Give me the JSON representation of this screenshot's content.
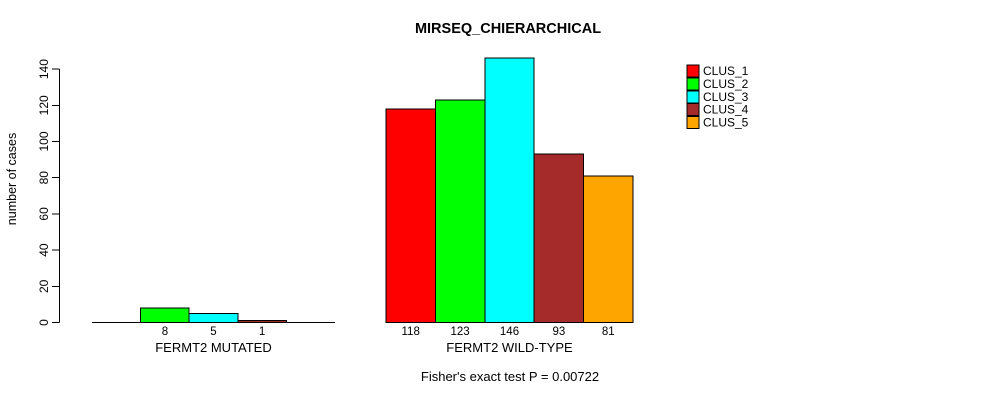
{
  "chart_data": {
    "type": "bar",
    "title": "MIRSEQ_CHIERARCHICAL",
    "ylabel": "number of cases",
    "xlabel": "",
    "ylim": [
      0,
      145
    ],
    "yticks": [
      0,
      20,
      40,
      60,
      80,
      100,
      120,
      140
    ],
    "categories": [
      "FERMT2 MUTATED",
      "FERMT2 WILD-TYPE"
    ],
    "series": [
      {
        "name": "CLUS_1",
        "color": "#FF0000",
        "values": [
          0,
          118
        ]
      },
      {
        "name": "CLUS_2",
        "color": "#00FF00",
        "values": [
          8,
          123
        ]
      },
      {
        "name": "CLUS_3",
        "color": "#00FFFF",
        "values": [
          5,
          146
        ]
      },
      {
        "name": "CLUS_4",
        "color": "#A52A2A",
        "values": [
          1,
          93
        ]
      },
      {
        "name": "CLUS_5",
        "color": "#FFA500",
        "values": [
          0,
          81
        ]
      }
    ],
    "bar_value_labels": true,
    "value_labels_shown_only_for_nonzero": true,
    "legend_position": "topright",
    "grid": false,
    "annotation": "Fisher's exact test P = 0.00722",
    "bar_border_color": "#000000",
    "axis_color": "#000000"
  }
}
